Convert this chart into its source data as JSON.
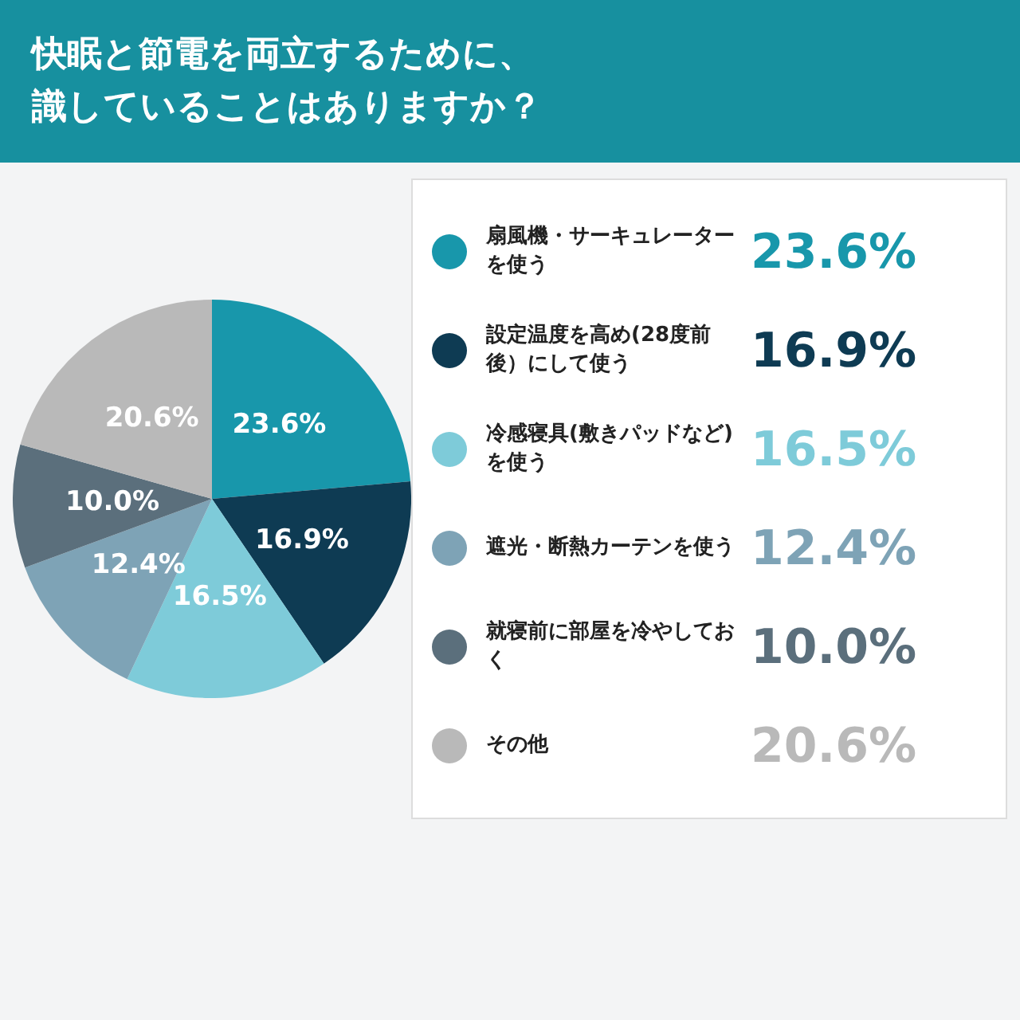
{
  "chart_data": {
    "type": "pie",
    "title": "快眠と節電を両立するために、識していることはありますか？",
    "categories": [
      "扇風機・サーキュレーターを使う",
      "設定温度を高め(28度前後）にして使う",
      "冷感寝具(敷きパッドなど)を使う",
      "遮光・断熱カーテンを使う",
      "就寝前に部屋を冷やしておく",
      "その他"
    ],
    "values": [
      23.6,
      16.9,
      16.5,
      12.4,
      10.0,
      20.6
    ],
    "colors": [
      "#1897ab",
      "#0e3b53",
      "#7ecbd9",
      "#7ea3b6",
      "#5b6f7c",
      "#b9b9b9"
    ],
    "value_labels": [
      "23.6%",
      "16.9%",
      "16.5%",
      "12.4%",
      "10.0%",
      "20.6%"
    ],
    "data_labels": true,
    "legend": "right"
  }
}
